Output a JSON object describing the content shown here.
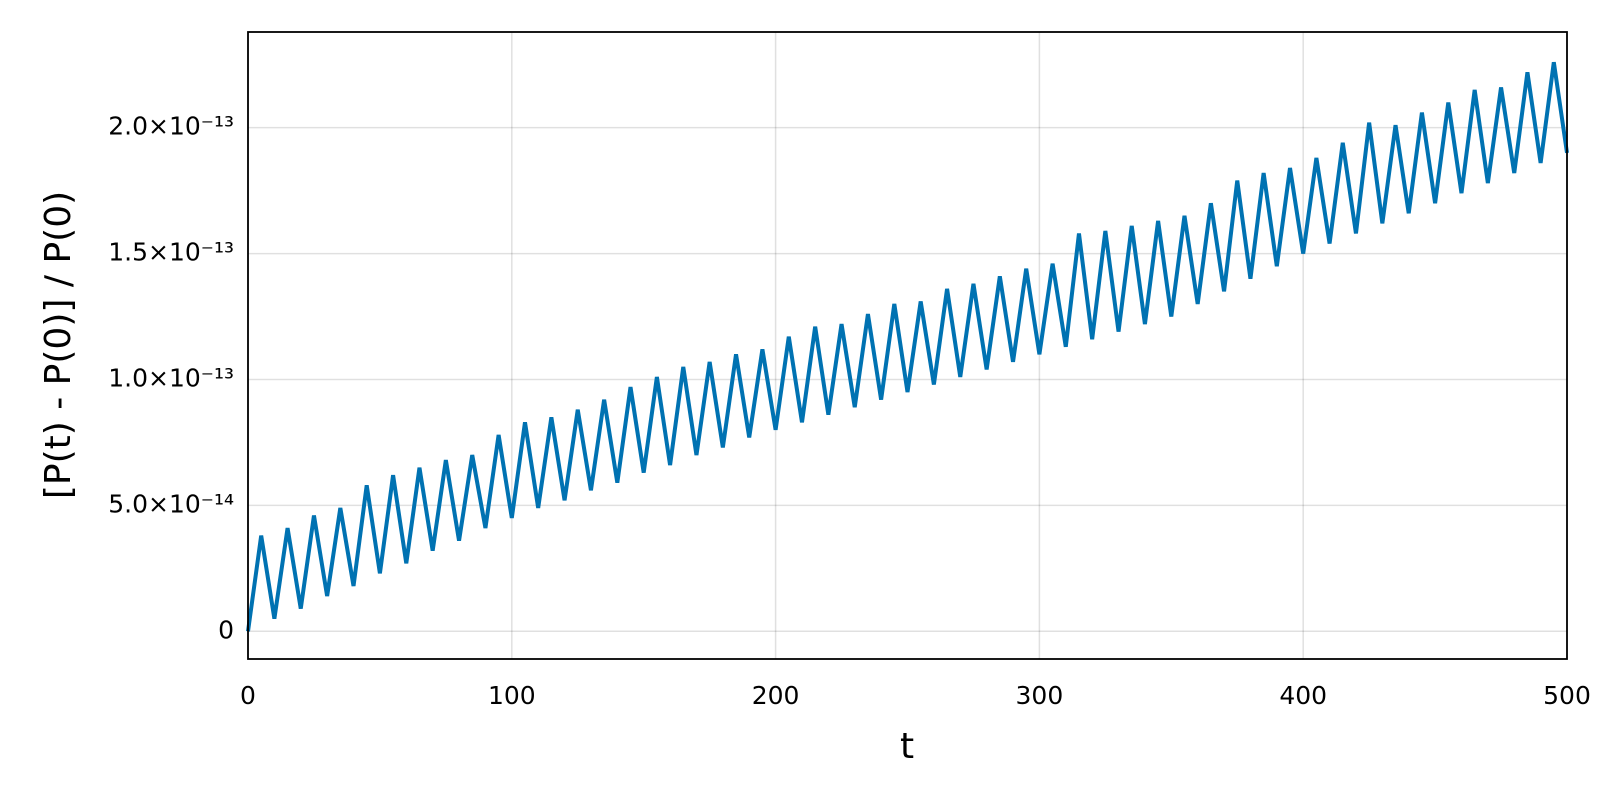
{
  "chart_data": {
    "type": "line",
    "xlabel": "t",
    "ylabel": "[P(t) - P(0)] / P(0)",
    "x": [
      0,
      5,
      10,
      15,
      20,
      25,
      30,
      35,
      40,
      45,
      50,
      55,
      60,
      65,
      70,
      75,
      80,
      85,
      90,
      95,
      100,
      105,
      110,
      115,
      120,
      125,
      130,
      135,
      140,
      145,
      150,
      155,
      160,
      165,
      170,
      175,
      180,
      185,
      190,
      195,
      200,
      205,
      210,
      215,
      220,
      225,
      230,
      235,
      240,
      245,
      250,
      255,
      260,
      265,
      270,
      275,
      280,
      285,
      290,
      295,
      300,
      305,
      310,
      315,
      320,
      325,
      330,
      335,
      340,
      345,
      350,
      355,
      360,
      365,
      370,
      375,
      380,
      385,
      390,
      395,
      400,
      405,
      410,
      415,
      420,
      425,
      430,
      435,
      440,
      445,
      450,
      455,
      460,
      465,
      470,
      475,
      480,
      485,
      490,
      495,
      500
    ],
    "values": [
      0,
      3.8e-14,
      5e-15,
      4.1e-14,
      9e-15,
      4.6e-14,
      1.4e-14,
      4.9e-14,
      1.8e-14,
      5.8e-14,
      2.3e-14,
      6.2e-14,
      2.7e-14,
      6.5e-14,
      3.2e-14,
      6.8e-14,
      3.6e-14,
      7e-14,
      4.1e-14,
      7.8e-14,
      4.5e-14,
      8.3e-14,
      4.9e-14,
      8.5e-14,
      5.2e-14,
      8.8e-14,
      5.6e-14,
      9.2e-14,
      5.9e-14,
      9.7e-14,
      6.3e-14,
      1.01e-13,
      6.6e-14,
      1.05e-13,
      7e-14,
      1.07e-13,
      7.3e-14,
      1.1e-13,
      7.7e-14,
      1.12e-13,
      8e-14,
      1.17e-13,
      8.3e-14,
      1.21e-13,
      8.6e-14,
      1.22e-13,
      8.9e-14,
      1.26e-13,
      9.2e-14,
      1.3e-13,
      9.5e-14,
      1.31e-13,
      9.8e-14,
      1.36e-13,
      1.01e-13,
      1.38e-13,
      1.04e-13,
      1.41e-13,
      1.07e-13,
      1.44e-13,
      1.1e-13,
      1.46e-13,
      1.13e-13,
      1.58e-13,
      1.16e-13,
      1.59e-13,
      1.19e-13,
      1.61e-13,
      1.22e-13,
      1.63e-13,
      1.25e-13,
      1.65e-13,
      1.3e-13,
      1.7e-13,
      1.35e-13,
      1.79e-13,
      1.4e-13,
      1.82e-13,
      1.45e-13,
      1.84e-13,
      1.5e-13,
      1.88e-13,
      1.54e-13,
      1.94e-13,
      1.58e-13,
      2.02e-13,
      1.62e-13,
      2.01e-13,
      1.66e-13,
      2.06e-13,
      1.7e-13,
      2.1e-13,
      1.74e-13,
      2.15e-13,
      1.78e-13,
      2.16e-13,
      1.82e-13,
      2.22e-13,
      1.86e-13,
      2.26e-13,
      1.9e-13
    ],
    "color": "#0072b2",
    "xlim": [
      0,
      500
    ],
    "xticks": [
      0,
      100,
      200,
      300,
      400,
      500
    ],
    "ylim": [
      -1.1e-14,
      2.38e-13
    ],
    "yticks": [
      0,
      {
        "value": 5e-14,
        "label": "5.0×10⁻¹⁴"
      },
      {
        "value": 1e-13,
        "label": "1.0×10⁻¹³"
      },
      {
        "value": 1.5e-13,
        "label": "1.5×10⁻¹³"
      },
      {
        "value": 2e-13,
        "label": "2.0×10⁻¹³"
      }
    ],
    "grid": true
  }
}
